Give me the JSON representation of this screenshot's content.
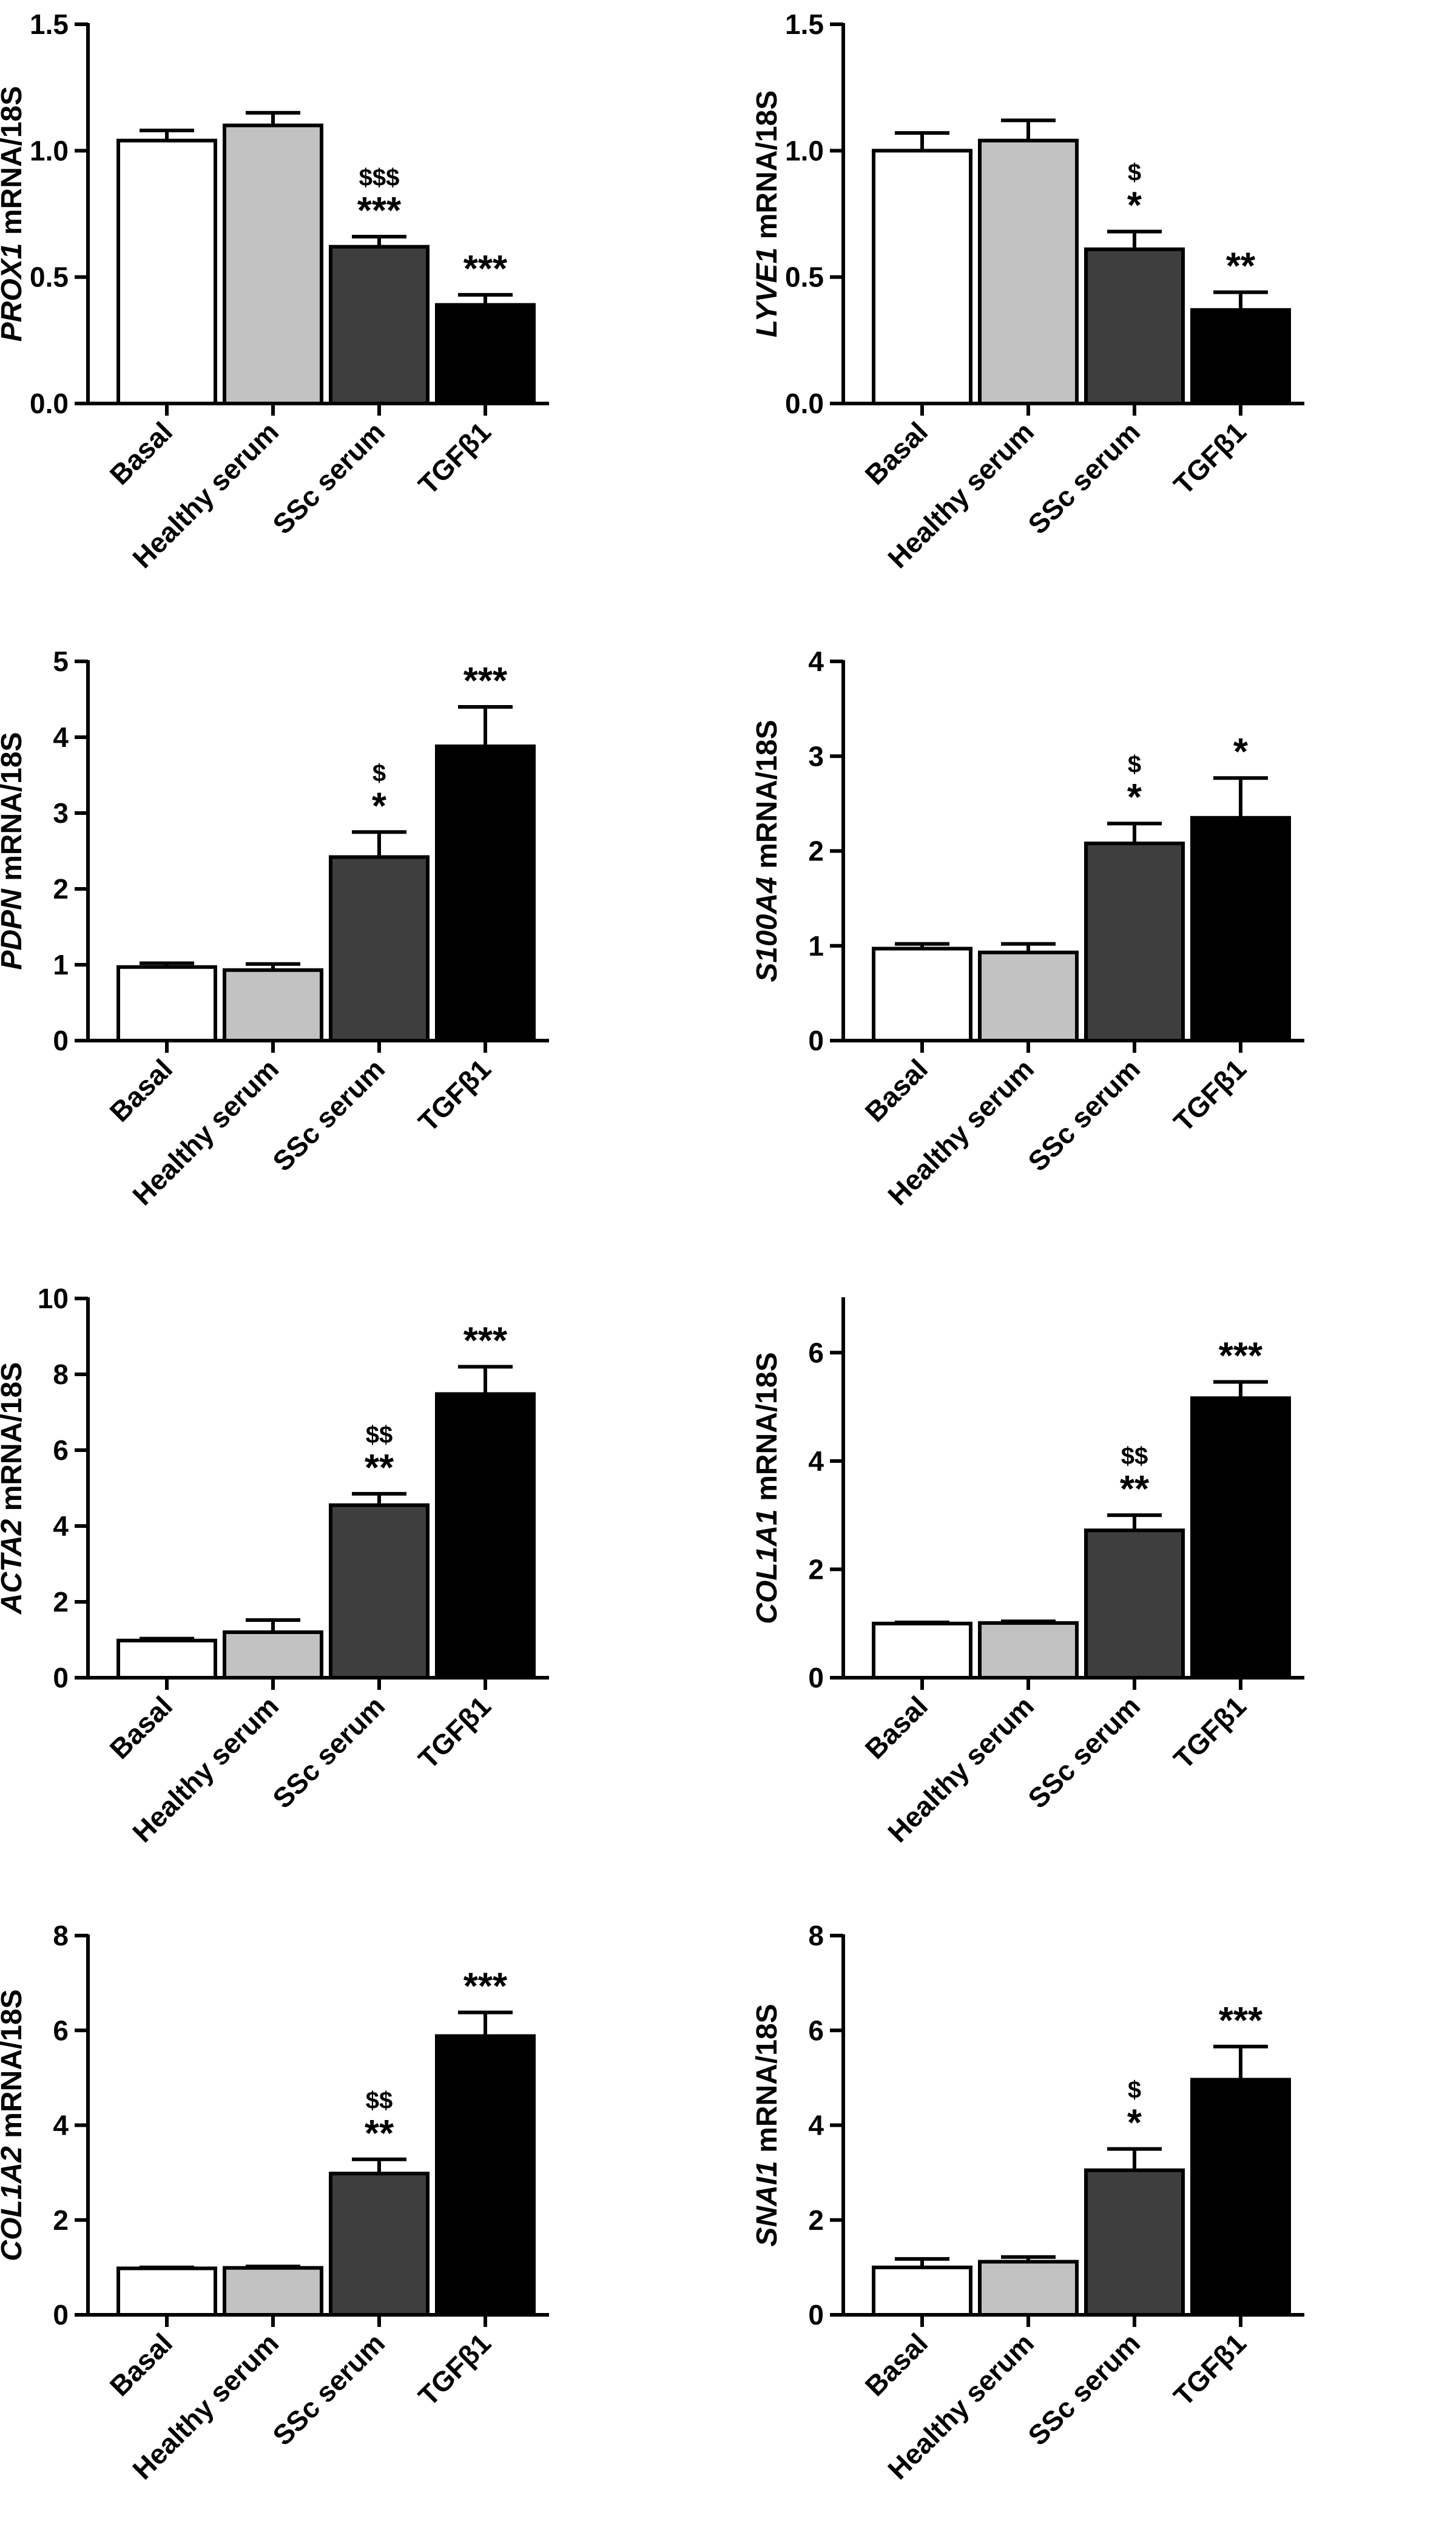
{
  "colors": {
    "Basal": "#ffffff",
    "Healthy serum": "#c2c2c2",
    "SSc serum": "#3e3e3e",
    "TGFβ1": "#000000",
    "axis": "#000000"
  },
  "chart_data": [
    {
      "type": "bar",
      "gene": "PROX1",
      "ylabel_suffix": " mRNA/18S",
      "categories": [
        "Basal",
        "Healthy serum",
        "SSc serum",
        "TGFβ1"
      ],
      "values": [
        1.04,
        1.1,
        0.62,
        0.39
      ],
      "errors": [
        0.04,
        0.05,
        0.04,
        0.04
      ],
      "annotations_star": [
        "",
        "",
        "***",
        "***"
      ],
      "annotations_dollar": [
        "",
        "",
        "$$$",
        ""
      ],
      "ylim": [
        0,
        1.5
      ],
      "yticks": [
        0.0,
        0.5,
        1.0,
        1.5
      ],
      "yticklabels": [
        "0.0",
        "0.5",
        "1.0",
        "1.5"
      ]
    },
    {
      "type": "bar",
      "gene": "LYVE1",
      "ylabel_suffix": " mRNA/18S",
      "categories": [
        "Basal",
        "Healthy serum",
        "SSc serum",
        "TGFβ1"
      ],
      "values": [
        1.0,
        1.04,
        0.61,
        0.37
      ],
      "errors": [
        0.07,
        0.08,
        0.07,
        0.07
      ],
      "annotations_star": [
        "",
        "",
        "*",
        "**"
      ],
      "annotations_dollar": [
        "",
        "",
        "$",
        ""
      ],
      "ylim": [
        0,
        1.5
      ],
      "yticks": [
        0.0,
        0.5,
        1.0,
        1.5
      ],
      "yticklabels": [
        "0.0",
        "0.5",
        "1.0",
        "1.5"
      ]
    },
    {
      "type": "bar",
      "gene": "PDPN",
      "ylabel_suffix": " mRNA/18S",
      "categories": [
        "Basal",
        "Healthy serum",
        "SSc serum",
        "TGFβ1"
      ],
      "values": [
        0.97,
        0.93,
        2.42,
        3.88
      ],
      "errors": [
        0.05,
        0.08,
        0.33,
        0.52
      ],
      "annotations_star": [
        "",
        "",
        "*",
        "***"
      ],
      "annotations_dollar": [
        "",
        "",
        "$",
        ""
      ],
      "ylim": [
        0,
        5
      ],
      "yticks": [
        0,
        1,
        2,
        3,
        4,
        5
      ],
      "yticklabels": [
        "0",
        "1",
        "2",
        "3",
        "4",
        "5"
      ]
    },
    {
      "type": "bar",
      "gene": "S100A4",
      "ylabel_suffix": " mRNA/18S",
      "categories": [
        "Basal",
        "Healthy serum",
        "SSc serum",
        "TGFβ1"
      ],
      "values": [
        0.97,
        0.93,
        2.08,
        2.35
      ],
      "errors": [
        0.05,
        0.09,
        0.21,
        0.42
      ],
      "annotations_star": [
        "",
        "",
        "*",
        "*"
      ],
      "annotations_dollar": [
        "",
        "",
        "$",
        ""
      ],
      "ylim": [
        0,
        4
      ],
      "yticks": [
        0,
        1,
        2,
        3,
        4
      ],
      "yticklabels": [
        "0",
        "1",
        "2",
        "3",
        "4"
      ]
    },
    {
      "type": "bar",
      "gene": "ACTA2",
      "ylabel_suffix": " mRNA/18S",
      "categories": [
        "Basal",
        "Healthy serum",
        "SSc serum",
        "TGFβ1"
      ],
      "values": [
        0.98,
        1.2,
        4.55,
        7.48
      ],
      "errors": [
        0.05,
        0.32,
        0.3,
        0.72
      ],
      "annotations_star": [
        "",
        "",
        "**",
        "***"
      ],
      "annotations_dollar": [
        "",
        "",
        "$$",
        ""
      ],
      "ylim": [
        0,
        10
      ],
      "yticks": [
        0,
        2,
        4,
        6,
        8,
        10
      ],
      "yticklabels": [
        "0",
        "2",
        "4",
        "6",
        "8",
        "10"
      ]
    },
    {
      "type": "bar",
      "gene": "COL1A1",
      "ylabel_suffix": " mRNA/18S",
      "categories": [
        "Basal",
        "Healthy serum",
        "SSc serum",
        "TGFβ1"
      ],
      "values": [
        1.0,
        1.01,
        2.72,
        5.16
      ],
      "errors": [
        0.02,
        0.03,
        0.28,
        0.3
      ],
      "annotations_star": [
        "",
        "",
        "**",
        "***"
      ],
      "annotations_dollar": [
        "",
        "",
        "$$",
        ""
      ],
      "ylim": [
        0,
        7
      ],
      "yticks": [
        0,
        2,
        4,
        6
      ],
      "yticklabels": [
        "0",
        "2",
        "4",
        "6"
      ]
    },
    {
      "type": "bar",
      "gene": "COL1A2",
      "ylabel_suffix": " mRNA/18S",
      "categories": [
        "Basal",
        "Healthy serum",
        "SSc serum",
        "TGFβ1"
      ],
      "values": [
        0.98,
        0.99,
        2.98,
        5.88
      ],
      "errors": [
        0.02,
        0.03,
        0.3,
        0.5
      ],
      "annotations_star": [
        "",
        "",
        "**",
        "***"
      ],
      "annotations_dollar": [
        "",
        "",
        "$$",
        ""
      ],
      "ylim": [
        0,
        8
      ],
      "yticks": [
        0,
        2,
        4,
        6,
        8
      ],
      "yticklabels": [
        "0",
        "2",
        "4",
        "6",
        "8"
      ]
    },
    {
      "type": "bar",
      "gene": "SNAI1",
      "ylabel_suffix": " mRNA/18S",
      "categories": [
        "Basal",
        "Healthy serum",
        "SSc serum",
        "TGFβ1"
      ],
      "values": [
        1.0,
        1.12,
        3.05,
        4.96
      ],
      "errors": [
        0.18,
        0.1,
        0.45,
        0.7
      ],
      "annotations_star": [
        "",
        "",
        "*",
        "***"
      ],
      "annotations_dollar": [
        "",
        "",
        "$",
        ""
      ],
      "ylim": [
        0,
        8
      ],
      "yticks": [
        0,
        2,
        4,
        6,
        8
      ],
      "yticklabels": [
        "0",
        "2",
        "4",
        "6",
        "8"
      ]
    }
  ]
}
